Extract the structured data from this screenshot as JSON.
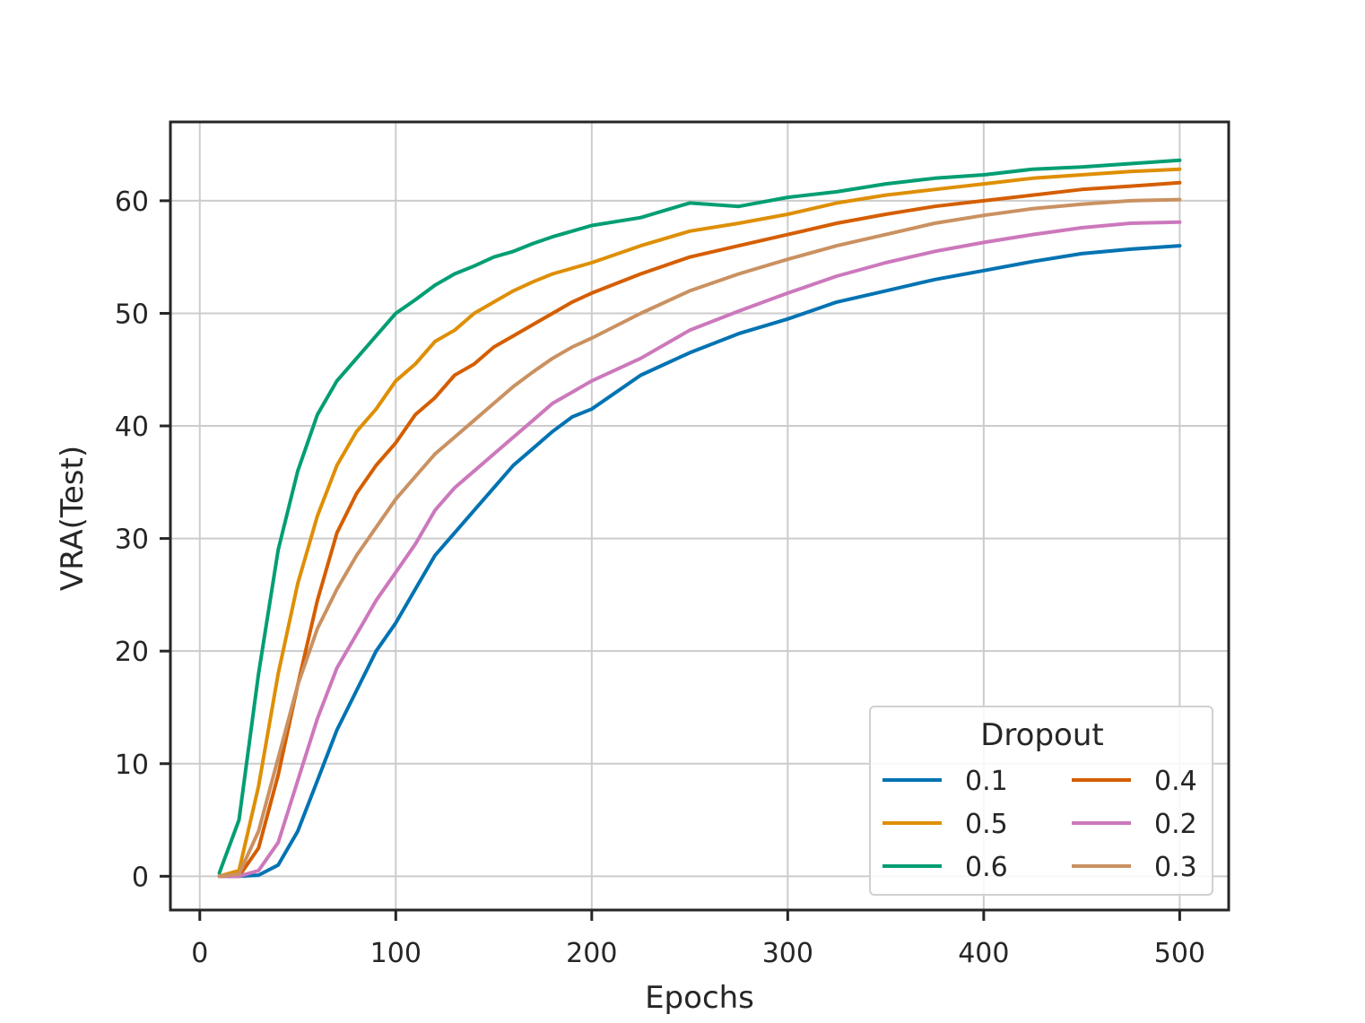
{
  "chart_data": {
    "type": "line",
    "xlabel": "Epochs",
    "ylabel": "VRA(Test)",
    "xlim": [
      -15,
      525
    ],
    "ylim": [
      -3,
      67
    ],
    "xticks": [
      0,
      100,
      200,
      300,
      400,
      500
    ],
    "yticks": [
      0,
      10,
      20,
      30,
      40,
      50,
      60
    ],
    "grid": true,
    "legend": {
      "title": "Dropout",
      "placement": "lower-right",
      "columns": 2
    },
    "x": [
      10,
      20,
      30,
      40,
      50,
      60,
      70,
      80,
      90,
      100,
      110,
      120,
      130,
      140,
      150,
      160,
      170,
      180,
      190,
      200,
      225,
      250,
      275,
      300,
      325,
      350,
      375,
      400,
      425,
      450,
      475,
      500
    ],
    "series": [
      {
        "name": "0.1",
        "color": "#0173b2",
        "values": [
          0,
          0,
          0.1,
          1.0,
          4.0,
          8.5,
          13.0,
          16.5,
          20.0,
          22.5,
          25.5,
          28.5,
          30.5,
          32.5,
          34.5,
          36.5,
          38.0,
          39.5,
          40.8,
          41.5,
          44.5,
          46.5,
          48.2,
          49.5,
          51.0,
          52.0,
          53.0,
          53.8,
          54.6,
          55.3,
          55.7,
          56.0
        ]
      },
      {
        "name": "0.5",
        "color": "#de8f05",
        "values": [
          0,
          0.5,
          8.0,
          18.0,
          26.0,
          32.0,
          36.5,
          39.5,
          41.5,
          44.0,
          45.5,
          47.5,
          48.5,
          50.0,
          51.0,
          52.0,
          52.8,
          53.5,
          54.0,
          54.5,
          56.0,
          57.3,
          58.0,
          58.8,
          59.8,
          60.5,
          61.0,
          61.5,
          62.0,
          62.3,
          62.6,
          62.8
        ]
      },
      {
        "name": "0.6",
        "color": "#029e73",
        "values": [
          0.3,
          5.0,
          18.0,
          29.0,
          36.0,
          41.0,
          44.0,
          46.0,
          48.0,
          50.0,
          51.2,
          52.5,
          53.5,
          54.2,
          55.0,
          55.5,
          56.2,
          56.8,
          57.3,
          57.8,
          58.5,
          59.8,
          59.5,
          60.3,
          60.8,
          61.5,
          62.0,
          62.3,
          62.8,
          63.0,
          63.3,
          63.6
        ]
      },
      {
        "name": "0.4",
        "color": "#d55e00",
        "values": [
          0,
          0,
          2.5,
          9.0,
          17.0,
          24.5,
          30.5,
          34.0,
          36.5,
          38.5,
          41.0,
          42.5,
          44.5,
          45.5,
          47.0,
          48.0,
          49.0,
          50.0,
          51.0,
          51.8,
          53.5,
          55.0,
          56.0,
          57.0,
          58.0,
          58.8,
          59.5,
          60.0,
          60.5,
          61.0,
          61.3,
          61.6
        ]
      },
      {
        "name": "0.2",
        "color": "#cc78bc",
        "values": [
          0,
          0,
          0.5,
          3.0,
          8.5,
          14.0,
          18.5,
          21.5,
          24.5,
          27.0,
          29.5,
          32.5,
          34.5,
          36.0,
          37.5,
          39.0,
          40.5,
          42.0,
          43.0,
          44.0,
          46.0,
          48.5,
          50.2,
          51.8,
          53.3,
          54.5,
          55.5,
          56.3,
          57.0,
          57.6,
          58.0,
          58.1
        ]
      },
      {
        "name": "0.3",
        "color": "#ca9161",
        "values": [
          0,
          0.2,
          4.0,
          10.5,
          17.0,
          22.0,
          25.5,
          28.5,
          31.0,
          33.5,
          35.5,
          37.5,
          39.0,
          40.5,
          42.0,
          43.5,
          44.8,
          46.0,
          47.0,
          47.8,
          50.0,
          52.0,
          53.5,
          54.8,
          56.0,
          57.0,
          58.0,
          58.7,
          59.3,
          59.7,
          60.0,
          60.1
        ]
      }
    ]
  }
}
